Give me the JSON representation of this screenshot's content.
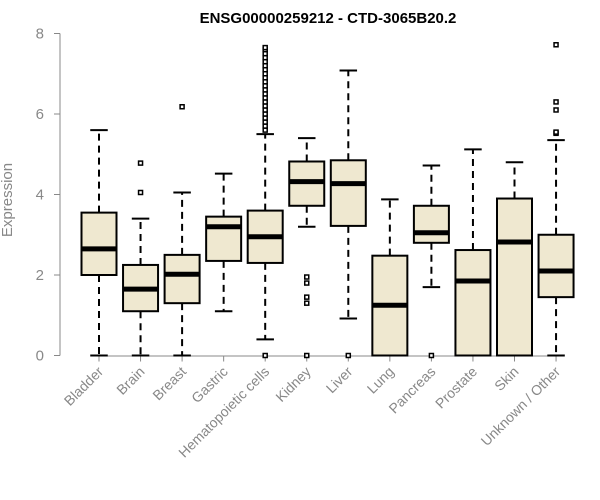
{
  "chart_data": {
    "type": "box",
    "title": "ENSG00000259212 - CTD-3065B20.2",
    "xlabel": "",
    "ylabel": "Expression",
    "ylim": [
      0,
      8
    ],
    "yticks": [
      0,
      2,
      4,
      6,
      8
    ],
    "grid": false,
    "legend": "none",
    "colors": {
      "box_fill": "#efe8d0",
      "box_stroke": "#000000",
      "axis": "#888888"
    },
    "categories": [
      "Bladder",
      "Brain",
      "Breast",
      "Gastric",
      "Hematopoietic cells",
      "Kidney",
      "Liver",
      "Lung",
      "Pancreas",
      "Prostate",
      "Skin",
      "Unknown / Other"
    ],
    "boxes": [
      {
        "category": "Bladder",
        "min": 0.0,
        "q1": 2.0,
        "median": 2.65,
        "q3": 3.55,
        "max": 5.6,
        "outliers": []
      },
      {
        "category": "Brain",
        "min": 0.0,
        "q1": 1.1,
        "median": 1.65,
        "q3": 2.25,
        "max": 3.4,
        "outliers": [
          4.05,
          4.78
        ]
      },
      {
        "category": "Breast",
        "min": 0.0,
        "q1": 1.3,
        "median": 2.02,
        "q3": 2.5,
        "max": 4.05,
        "outliers": [
          6.18
        ]
      },
      {
        "category": "Gastric",
        "min": 1.1,
        "q1": 2.35,
        "median": 3.2,
        "q3": 3.45,
        "max": 4.52,
        "outliers": []
      },
      {
        "category": "Hematopoietic cells",
        "min": 0.4,
        "q1": 2.3,
        "median": 2.95,
        "q3": 3.6,
        "max": 5.5,
        "outliers": [
          0.0,
          5.6,
          5.7,
          5.8,
          5.9,
          6.0,
          6.1,
          6.2,
          6.3,
          6.4,
          6.5,
          6.6,
          6.7,
          6.8,
          6.9,
          7.0,
          7.1,
          7.2,
          7.3,
          7.4,
          7.5,
          7.6,
          7.65
        ]
      },
      {
        "category": "Kidney",
        "min": 3.2,
        "q1": 3.72,
        "median": 4.32,
        "q3": 4.82,
        "max": 5.4,
        "outliers": [
          0.0,
          1.3,
          1.45,
          1.8,
          1.95
        ]
      },
      {
        "category": "Liver",
        "min": 0.92,
        "q1": 3.22,
        "median": 4.27,
        "q3": 4.85,
        "max": 7.08,
        "outliers": [
          0.0
        ]
      },
      {
        "category": "Lung",
        "min": 0.0,
        "q1": 0.0,
        "median": 1.25,
        "q3": 2.48,
        "max": 3.88,
        "outliers": []
      },
      {
        "category": "Pancreas",
        "min": 1.7,
        "q1": 2.8,
        "median": 3.05,
        "q3": 3.72,
        "max": 4.72,
        "outliers": [
          0.0
        ]
      },
      {
        "category": "Prostate",
        "min": 0.0,
        "q1": 0.0,
        "median": 1.85,
        "q3": 2.62,
        "max": 5.12,
        "outliers": []
      },
      {
        "category": "Skin",
        "min": 0.0,
        "q1": 0.0,
        "median": 2.82,
        "q3": 3.9,
        "max": 4.8,
        "outliers": []
      },
      {
        "category": "Unknown / Other",
        "min": 0.0,
        "q1": 1.45,
        "median": 2.1,
        "q3": 3.0,
        "max": 5.35,
        "outliers": [
          5.52,
          5.55,
          6.1,
          6.3,
          7.72
        ]
      }
    ]
  }
}
